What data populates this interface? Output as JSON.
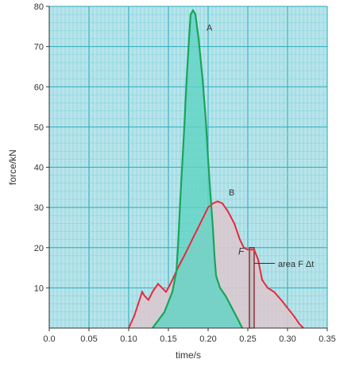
{
  "chart_data": {
    "type": "line",
    "xlabel": "time/s",
    "ylabel": "force/kN",
    "xlim": [
      0,
      0.35
    ],
    "ylim": [
      0,
      80
    ],
    "x_ticks": [
      "0.0",
      "0.05",
      "0.10",
      "0.15",
      "0.20",
      "0.25",
      "0.30",
      "0.35"
    ],
    "y_ticks": [
      "10",
      "20",
      "30",
      "40",
      "50",
      "60",
      "70",
      "80"
    ],
    "grid": true,
    "colors": {
      "background": "#b8e4ea",
      "grid_minor": "#7fd1dd",
      "grid_major": "#28aebd",
      "series_A": "#1aa35a",
      "fill_A": "#5fd3c3",
      "series_B": "#e8293d",
      "fill_B": "#d9c9cf",
      "strip": "#c8c0c4"
    },
    "series": [
      {
        "name": "A",
        "x": [
          0.13,
          0.145,
          0.155,
          0.16,
          0.162,
          0.165,
          0.17,
          0.173,
          0.176,
          0.178,
          0.181,
          0.184,
          0.188,
          0.193,
          0.197,
          0.2,
          0.203,
          0.206,
          0.208,
          0.21,
          0.215,
          0.222,
          0.23,
          0.238,
          0.243
        ],
        "y": [
          0,
          4,
          9,
          14,
          20,
          32,
          50,
          62,
          72,
          78,
          79,
          78,
          72,
          62,
          52,
          42,
          33,
          25,
          18,
          13,
          10,
          8,
          5,
          2,
          0
        ]
      },
      {
        "name": "B",
        "x": [
          0.1,
          0.107,
          0.112,
          0.117,
          0.12,
          0.125,
          0.13,
          0.137,
          0.142,
          0.147,
          0.15,
          0.155,
          0.162,
          0.17,
          0.18,
          0.19,
          0.2,
          0.206,
          0.212,
          0.218,
          0.225,
          0.233,
          0.24,
          0.245,
          0.25,
          0.258,
          0.263,
          0.268,
          0.275,
          0.283,
          0.292,
          0.3,
          0.308,
          0.315,
          0.32
        ],
        "y": [
          0,
          3,
          6,
          9,
          8,
          7,
          9,
          11,
          10,
          9,
          10,
          12,
          15,
          18,
          22,
          26,
          30,
          31,
          31.5,
          31,
          29,
          26,
          22,
          20,
          19.5,
          19.5,
          17,
          12,
          10,
          9,
          7,
          5,
          3,
          1,
          0
        ]
      }
    ],
    "annotations": [
      {
        "text": "A",
        "x": 0.198,
        "y": 74
      },
      {
        "text": "B",
        "x": 0.226,
        "y": 33
      },
      {
        "text": "F",
        "x": 0.238,
        "y": 18.3
      },
      {
        "text": "area F Δt",
        "x": 0.288,
        "y": 16
      }
    ],
    "highlight_strip": {
      "x": [
        0.252,
        0.258
      ],
      "y_top": 20
    }
  }
}
